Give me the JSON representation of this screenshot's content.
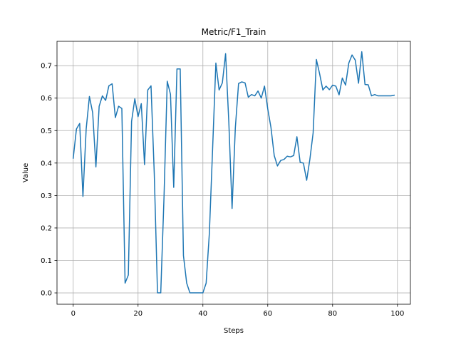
{
  "chart_data": {
    "type": "line",
    "title": "Metric/F1_Train",
    "xlabel": "Steps",
    "ylabel": "Value",
    "xlim": [
      -5,
      104
    ],
    "ylim": [
      -0.035,
      0.775
    ],
    "xticks": [
      0,
      20,
      40,
      60,
      80,
      100
    ],
    "xtick_labels": [
      "0",
      "20",
      "40",
      "60",
      "80",
      "100"
    ],
    "yticks": [
      0.0,
      0.1,
      0.2,
      0.3,
      0.4,
      0.5,
      0.6,
      0.7
    ],
    "ytick_labels": [
      "0.0",
      "0.1",
      "0.2",
      "0.3",
      "0.4",
      "0.5",
      "0.6",
      "0.7"
    ],
    "grid": true,
    "series": [
      {
        "color": "#1f77b4",
        "x": [
          0,
          1,
          2,
          3,
          4,
          5,
          6,
          7,
          8,
          9,
          10,
          11,
          12,
          13,
          14,
          15,
          16,
          17,
          18,
          19,
          20,
          21,
          22,
          23,
          24,
          25,
          26,
          27,
          28,
          29,
          30,
          31,
          32,
          33,
          34,
          35,
          36,
          37,
          38,
          39,
          40,
          41,
          42,
          43,
          44,
          45,
          46,
          47,
          48,
          49,
          50,
          51,
          52,
          53,
          54,
          55,
          56,
          57,
          58,
          59,
          60,
          61,
          62,
          63,
          64,
          65,
          66,
          67,
          68,
          69,
          70,
          71,
          72,
          73,
          74,
          75,
          76,
          77,
          78,
          79,
          80,
          81,
          82,
          83,
          84,
          85,
          86,
          87,
          88,
          89,
          90,
          91,
          92,
          93,
          94,
          95,
          96,
          97,
          98,
          99
        ],
        "values": [
          0.415,
          0.505,
          0.522,
          0.297,
          0.505,
          0.605,
          0.555,
          0.388,
          0.575,
          0.607,
          0.593,
          0.638,
          0.644,
          0.54,
          0.575,
          0.568,
          0.03,
          0.055,
          0.528,
          0.598,
          0.543,
          0.583,
          0.395,
          0.625,
          0.638,
          0.368,
          0.0,
          0.0,
          0.293,
          0.652,
          0.612,
          0.325,
          0.69,
          0.69,
          0.115,
          0.03,
          0.0,
          0.0,
          0.0,
          0.0,
          0.0,
          0.03,
          0.185,
          0.445,
          0.708,
          0.625,
          0.647,
          0.737,
          0.525,
          0.26,
          0.508,
          0.645,
          0.65,
          0.647,
          0.603,
          0.611,
          0.607,
          0.622,
          0.6,
          0.637,
          0.567,
          0.509,
          0.423,
          0.391,
          0.408,
          0.411,
          0.421,
          0.419,
          0.423,
          0.481,
          0.402,
          0.4,
          0.347,
          0.412,
          0.493,
          0.719,
          0.675,
          0.625,
          0.637,
          0.626,
          0.64,
          0.637,
          0.61,
          0.662,
          0.64,
          0.708,
          0.733,
          0.717,
          0.646,
          0.743,
          0.642,
          0.641,
          0.607,
          0.611,
          0.607,
          0.607,
          0.607,
          0.607,
          0.607,
          0.609
        ]
      }
    ]
  }
}
